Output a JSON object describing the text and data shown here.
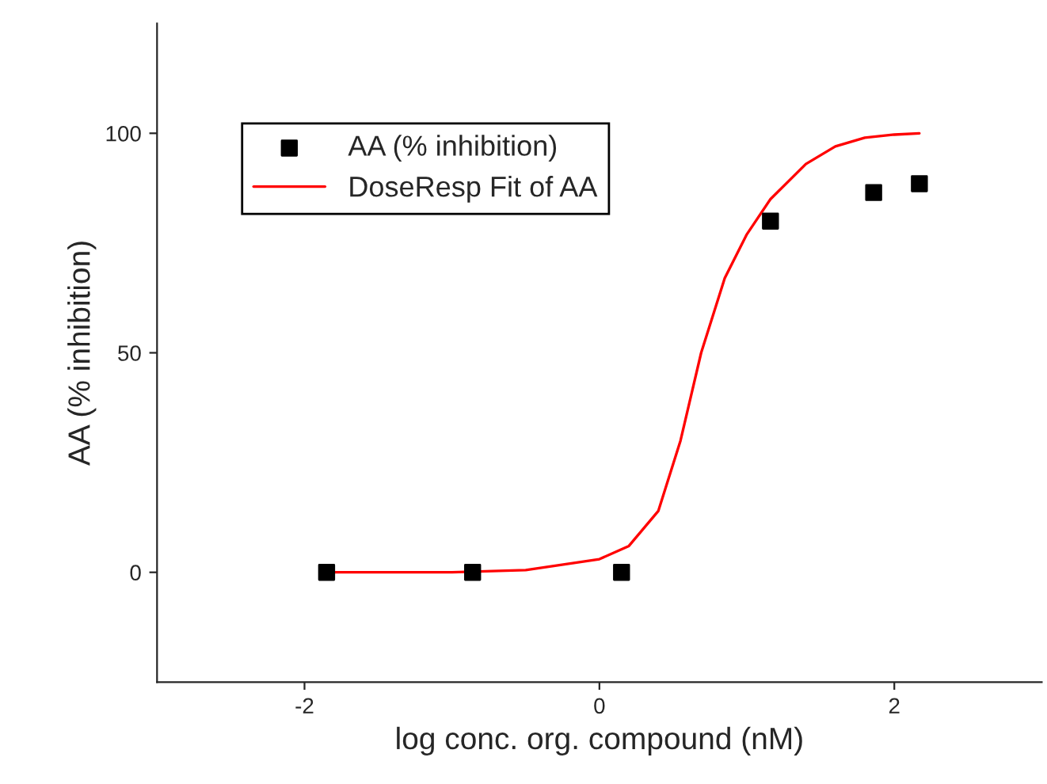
{
  "chart_data": {
    "type": "scatter",
    "xlabel": "log conc. org. compound (nM)",
    "ylabel": "AA (% inhibition)",
    "xlim": [
      -3,
      3
    ],
    "ylim": [
      -25,
      125
    ],
    "xticks": [
      -2,
      0,
      2
    ],
    "yticks": [
      0,
      50,
      100
    ],
    "grid": false,
    "legend": "top left",
    "series": [
      {
        "name": "AA (% inhibition)",
        "color": "#000000",
        "marker": "square",
        "x": [
          -1.85,
          -0.86,
          0.15,
          1.16,
          1.86,
          2.17
        ],
        "values": [
          0,
          0,
          0,
          80,
          86.5,
          88.5
        ]
      },
      {
        "name": "DoseResp Fit of AA",
        "type": "line",
        "color": "#ff0000",
        "marker": "none",
        "line_style": "solid",
        "x": [
          -1.85,
          -1,
          -0.5,
          0,
          0.2,
          0.4,
          0.55,
          0.69,
          0.85,
          1.0,
          1.16,
          1.4,
          1.6,
          1.8,
          2.0,
          2.17
        ],
        "values": [
          0,
          0,
          0.5,
          3,
          6,
          14,
          30,
          50,
          67,
          77,
          85,
          93,
          97,
          99,
          99.7,
          100
        ]
      }
    ]
  }
}
